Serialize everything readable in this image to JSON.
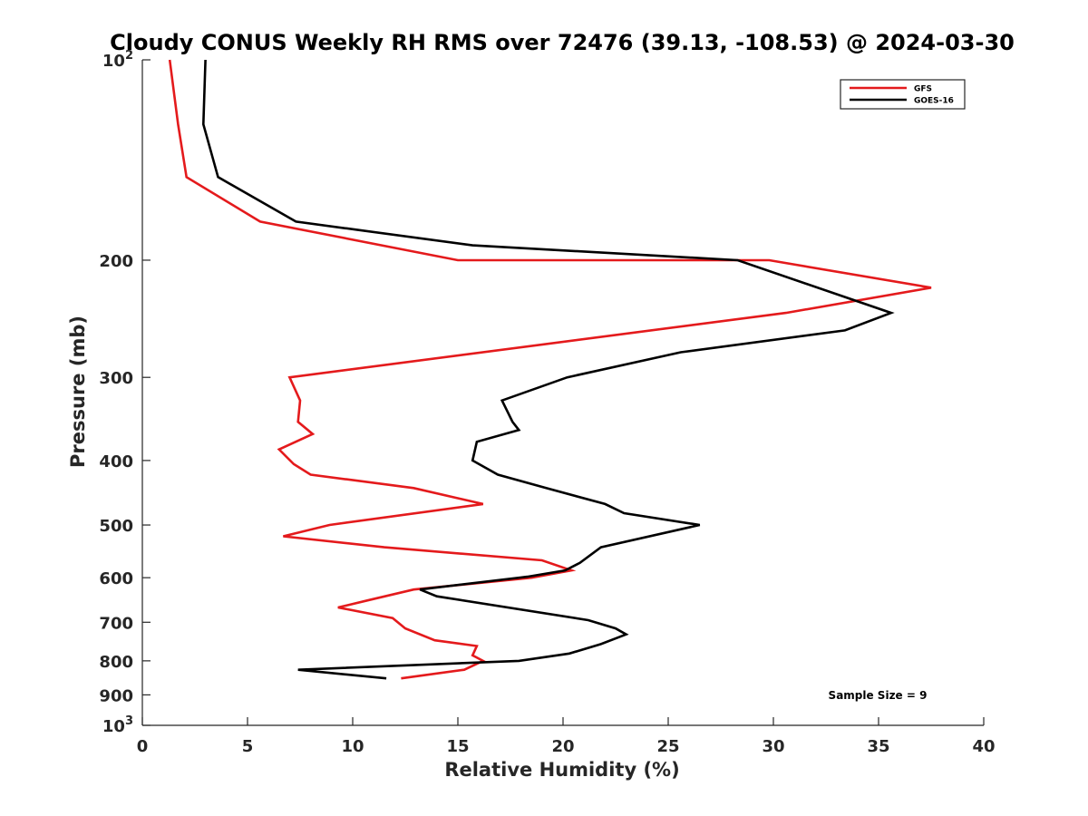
{
  "chart_data": {
    "type": "line",
    "title": "Cloudy CONUS Weekly RH RMS over 72476 (39.13, -108.53) @ 2024-03-30",
    "xlabel": "Relative Humidity (%)",
    "ylabel": "Pressure (mb)",
    "xlim": [
      0,
      40
    ],
    "ylim": [
      100,
      1000
    ],
    "y_scale": "log",
    "y_reversed": true,
    "x_ticks": [
      "0",
      "5",
      "10",
      "15",
      "20",
      "25",
      "30",
      "35",
      "40"
    ],
    "y_ticks": [
      {
        "value": 100,
        "label": "10",
        "sup": "2"
      },
      {
        "value": 200,
        "label": "200",
        "sup": ""
      },
      {
        "value": 300,
        "label": "300",
        "sup": ""
      },
      {
        "value": 400,
        "label": "400",
        "sup": ""
      },
      {
        "value": 500,
        "label": "500",
        "sup": ""
      },
      {
        "value": 600,
        "label": "600",
        "sup": ""
      },
      {
        "value": 700,
        "label": "700",
        "sup": ""
      },
      {
        "value": 800,
        "label": "800",
        "sup": ""
      },
      {
        "value": 900,
        "label": "900",
        "sup": ""
      },
      {
        "value": 1000,
        "label": "10",
        "sup": "3"
      }
    ],
    "grid": false,
    "legend_position": "top-right",
    "annotation": "Sample Size = 9",
    "series": [
      {
        "name": "GFS",
        "color": "#e41a1c",
        "points": [
          [
            1.3,
            100
          ],
          [
            1.7,
            125
          ],
          [
            2.1,
            150
          ],
          [
            5.6,
            175
          ],
          [
            15.0,
            200
          ],
          [
            29.8,
            200
          ],
          [
            37.5,
            220
          ],
          [
            30.6,
            240
          ],
          [
            7.0,
            300
          ],
          [
            7.5,
            325
          ],
          [
            7.4,
            350
          ],
          [
            8.1,
            365
          ],
          [
            6.5,
            385
          ],
          [
            7.2,
            405
          ],
          [
            8.0,
            420
          ],
          [
            12.9,
            440
          ],
          [
            16.2,
            465
          ],
          [
            8.9,
            500
          ],
          [
            6.7,
            520
          ],
          [
            11.5,
            540
          ],
          [
            19.0,
            565
          ],
          [
            20.4,
            585
          ],
          [
            18.5,
            600
          ],
          [
            12.9,
            625
          ],
          [
            10.8,
            648
          ],
          [
            9.3,
            665
          ],
          [
            11.9,
            690
          ],
          [
            12.5,
            715
          ],
          [
            13.9,
            745
          ],
          [
            15.9,
            760
          ],
          [
            15.7,
            785
          ],
          [
            16.2,
            800
          ],
          [
            15.3,
            825
          ],
          [
            12.3,
            850
          ]
        ]
      },
      {
        "name": "GOES-16",
        "color": "#000000",
        "points": [
          [
            3.0,
            100
          ],
          [
            2.9,
            125
          ],
          [
            3.6,
            150
          ],
          [
            7.3,
            175
          ],
          [
            15.7,
            190
          ],
          [
            28.3,
            200
          ],
          [
            35.6,
            240
          ],
          [
            33.4,
            255
          ],
          [
            25.6,
            275
          ],
          [
            20.2,
            300
          ],
          [
            17.1,
            325
          ],
          [
            17.6,
            350
          ],
          [
            17.9,
            360
          ],
          [
            15.9,
            375
          ],
          [
            15.7,
            400
          ],
          [
            16.9,
            420
          ],
          [
            19.2,
            440
          ],
          [
            22.0,
            465
          ],
          [
            22.9,
            480
          ],
          [
            26.5,
            500
          ],
          [
            21.8,
            540
          ],
          [
            20.8,
            570
          ],
          [
            20.1,
            585
          ],
          [
            18.3,
            598
          ],
          [
            13.2,
            625
          ],
          [
            14.0,
            640
          ],
          [
            21.2,
            695
          ],
          [
            22.5,
            715
          ],
          [
            23.0,
            730
          ],
          [
            21.8,
            755
          ],
          [
            20.3,
            780
          ],
          [
            17.9,
            800
          ],
          [
            7.4,
            825
          ],
          [
            11.6,
            850
          ]
        ]
      }
    ]
  }
}
